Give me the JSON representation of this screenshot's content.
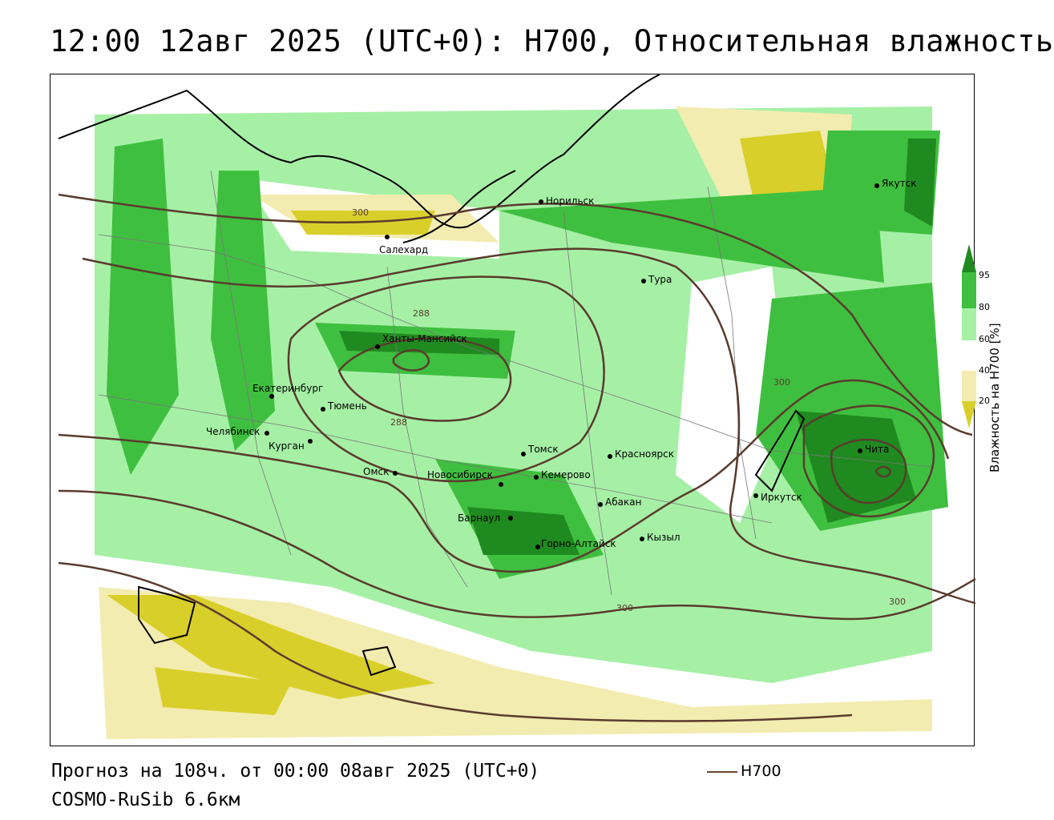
{
  "title": "12:00 12авг 2025 (UTC+0): H700, Относительная влажность",
  "footer": {
    "forecast": "Прогноз на 108ч. от 00:00 08авг 2025 (UTC+0)",
    "model": "COSMO-RuSib 6.6км",
    "legend_label": "H700"
  },
  "colorbar": {
    "title": "Влажность на H700 [%]",
    "ticks": [
      "95",
      "80",
      "60",
      "40",
      "20"
    ],
    "colors": {
      "c95": "#1f8a1f",
      "c80": "#3fbf3f",
      "c60": "#a6f0a6",
      "c50": "#ffffff",
      "c40": "#f3ecb0",
      "c20": "#d9cf2a"
    }
  },
  "contour_labels": [
    "300",
    "288",
    "288",
    "300",
    "300",
    "300"
  ],
  "cities": [
    {
      "name": "Норильск"
    },
    {
      "name": "Якутск"
    },
    {
      "name": "Салехард"
    },
    {
      "name": "Тура"
    },
    {
      "name": "Ханты-Мансийск"
    },
    {
      "name": "Екатеринбург"
    },
    {
      "name": "Тюмень"
    },
    {
      "name": "Челябинск"
    },
    {
      "name": "Курган"
    },
    {
      "name": "Омск"
    },
    {
      "name": "Новосибирск"
    },
    {
      "name": "Томск"
    },
    {
      "name": "Кемерово"
    },
    {
      "name": "Красноярск"
    },
    {
      "name": "Абакан"
    },
    {
      "name": "Барнаул"
    },
    {
      "name": "Горно-Алтайск"
    },
    {
      "name": "Кызыл"
    },
    {
      "name": "Иркутск"
    },
    {
      "name": "Чита"
    }
  ]
}
